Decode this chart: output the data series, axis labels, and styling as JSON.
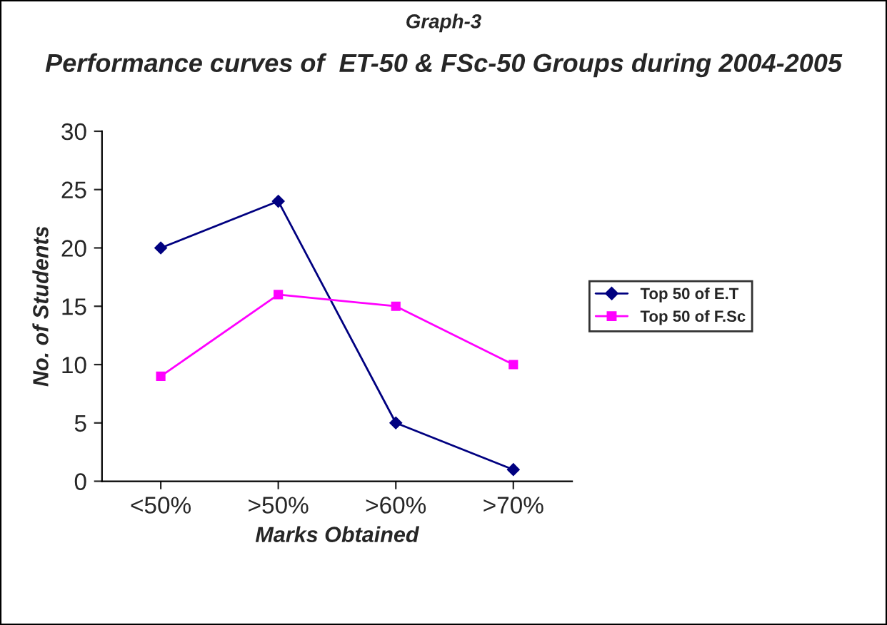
{
  "chart_data": {
    "type": "line",
    "title": "Graph-3",
    "subtitle": "Performance curves of  ET-50 & FSc-50 Groups during 2004-2005",
    "xlabel": "Marks Obtained",
    "ylabel": "No. of Students",
    "categories": [
      "<50%",
      ">50%",
      ">60%",
      ">70%"
    ],
    "series": [
      {
        "name": "Top 50 of E.T",
        "color": "#000080",
        "values": [
          20,
          24,
          5,
          1
        ],
        "marker": "diamond"
      },
      {
        "name": "Top 50 of F.Sc",
        "color": "#ff00ff",
        "values": [
          9,
          16,
          15,
          10
        ],
        "marker": "square"
      }
    ],
    "ylim": [
      0,
      30
    ],
    "yticks": [
      0,
      5,
      10,
      15,
      20,
      25,
      30
    ],
    "grid": false,
    "legend": "right",
    "line_style": "solid"
  }
}
